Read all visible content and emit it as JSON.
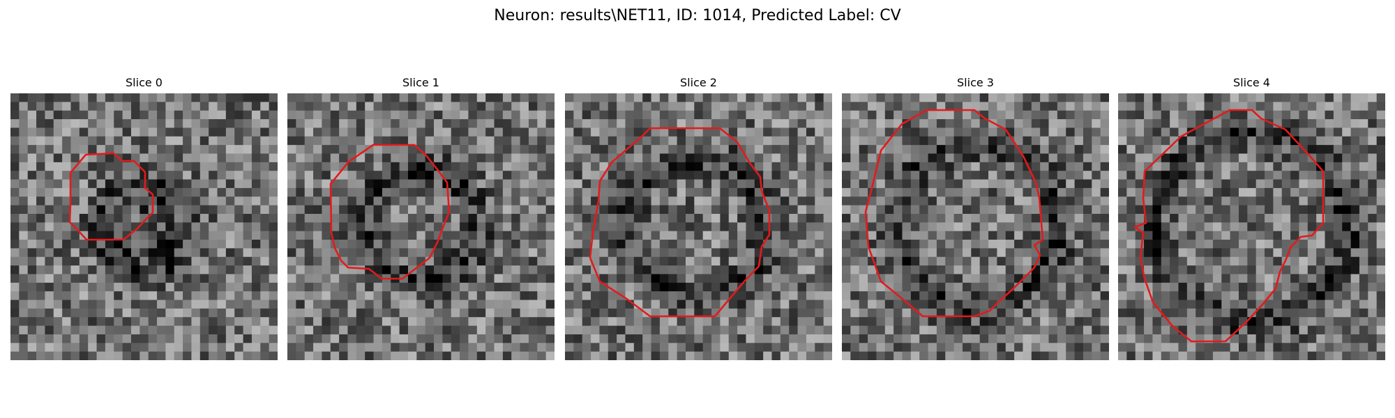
{
  "figure": {
    "title": "Neuron: results\\NET11, ID: 1014, Predicted Label: CV"
  },
  "panels": [
    {
      "title": "Slice 0"
    },
    {
      "title": "Slice 1"
    },
    {
      "title": "Slice 2"
    },
    {
      "title": "Slice 3"
    },
    {
      "title": "Slice 4"
    }
  ],
  "colors": {
    "contour": "#e41a1c",
    "background": "#ffffff"
  },
  "image": {
    "grid_size": 31,
    "colormap": "gray"
  }
}
